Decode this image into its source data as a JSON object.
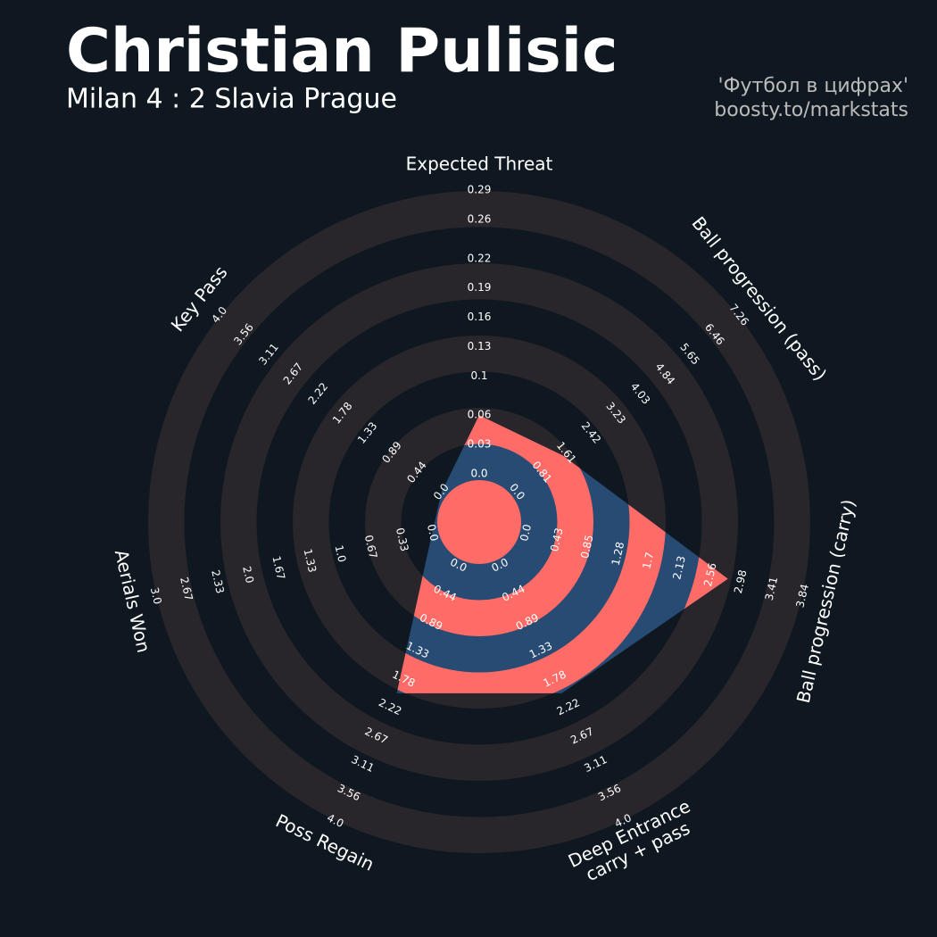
{
  "chart_data": {
    "type": "radar",
    "title": "Christian Pulisic",
    "subtitle": "Milan 4 : 2 Slavia Prague",
    "credits": [
      "'Футбол в цифрах'",
      "boosty.to/markstats"
    ],
    "categories": [
      [
        "Expected Threat"
      ],
      [
        "Ball progression (pass)"
      ],
      [
        "Ball progression (carry)"
      ],
      [
        "Deep Entrance",
        "carry + pass"
      ],
      [
        "Poss Regain"
      ],
      [
        "Aerials Won"
      ],
      [
        "Key Pass"
      ]
    ],
    "values": [
      0.06,
      1.5,
      2.8,
      2,
      2,
      0,
      0
    ],
    "axes": [
      {
        "lim": [
          0,
          0.29
        ],
        "ticks": [
          {
            "value": 0,
            "label": "0.0"
          },
          0.03,
          0.06,
          0.1,
          0.13,
          0.16,
          0.19,
          0.22,
          0.26,
          0.29
        ]
      },
      {
        "lim": [
          0,
          7.26
        ],
        "ticks": [
          {
            "value": 0,
            "label": "0.0"
          },
          0.81,
          1.61,
          2.42,
          3.23,
          4.03,
          4.84,
          5.65,
          6.46,
          7.26
        ]
      },
      {
        "lim": [
          0,
          3.84
        ],
        "ticks": [
          {
            "value": 0,
            "label": "0.0"
          },
          0.43,
          0.85,
          1.28,
          1.7,
          2.13,
          2.56,
          2.98,
          3.41,
          3.84
        ]
      },
      {
        "lim": [
          0,
          4
        ],
        "ticks": [
          {
            "value": 0,
            "label": "0.0"
          },
          0.44,
          0.89,
          1.33,
          1.78,
          2.22,
          2.67,
          3.11,
          3.56,
          {
            "value": 4,
            "label": "4.0"
          }
        ]
      },
      {
        "lim": [
          0,
          4
        ],
        "ticks": [
          {
            "value": 0,
            "label": "0.0"
          },
          0.44,
          0.89,
          1.33,
          1.78,
          2.22,
          2.67,
          3.11,
          3.56,
          {
            "value": 4,
            "label": "4.0"
          }
        ]
      },
      {
        "lim": [
          0,
          3
        ],
        "ticks": [
          {
            "value": 0,
            "label": "0.0"
          },
          0.33,
          0.67,
          {
            "value": 1,
            "label": "1.0"
          },
          1.33,
          1.67,
          {
            "value": 2,
            "label": "2.0"
          },
          2.33,
          2.67,
          {
            "value": 3,
            "label": "3.0"
          }
        ]
      },
      {
        "lim": [
          0,
          4
        ],
        "ticks": [
          {
            "value": 0,
            "label": "0.0"
          },
          0.44,
          0.89,
          1.33,
          1.78,
          2.22,
          2.67,
          3.11,
          3.56,
          {
            "value": 4,
            "label": "4.0"
          }
        ]
      }
    ],
    "background_color": "#0f1820",
    "ring_color": "#28252b",
    "radar_color": "#284b74",
    "highlight_color": "#ff6b66"
  }
}
